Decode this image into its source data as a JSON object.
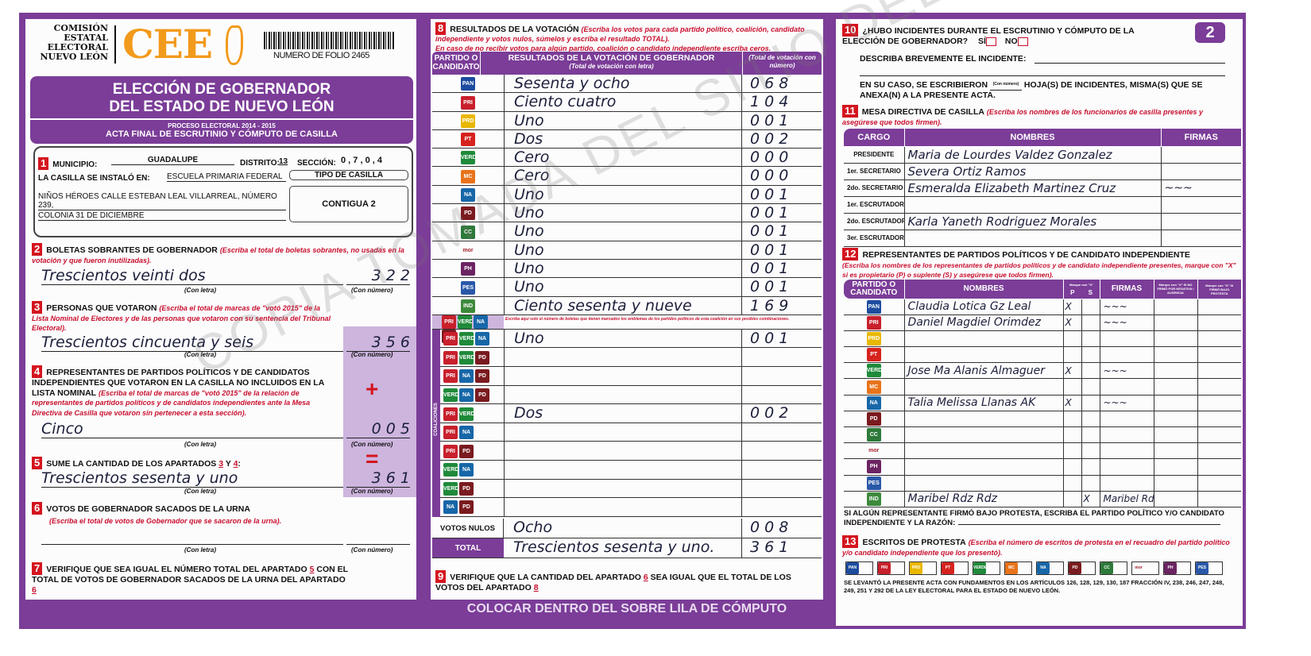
{
  "header": {
    "org_lines": [
      "COMISIÓN",
      "ESTATAL",
      "ELECTORAL",
      "NUEVO LEÓN"
    ],
    "logo_text": "CEE",
    "folio": "NUMERO DE FOLIO 2465",
    "title1": "ELECCIÓN DE GOBERNADOR",
    "title2": "DEL ESTADO DE NUEVO LEÓN",
    "subtitle1": "PROCESO ELECTORAL 2014 - 2015",
    "subtitle2": "ACTA FINAL DE ESCRUTINIO Y CÓMPUTO DE CASILLA",
    "sheet_number": "2"
  },
  "s1": {
    "num": "1",
    "municipio_label": "MUNICIPIO:",
    "municipio": "GUADALUPE",
    "distrito_label": "DISTRITO:",
    "distrito": "13",
    "seccion_label": "SECCIÓN:",
    "seccion": "0 , 7 , 0 , 4",
    "instalo_label": "LA CASILLA SE INSTALÓ EN:",
    "addr1": "ESCUELA PRIMARIA FEDERAL",
    "addr2": "NIÑOS HÉROES CALLE ESTEBAN LEAL VILLARREAL, NÚMERO 239,",
    "addr3": "COLONIA 31 DE DICIEMBRE",
    "tipo_label": "TIPO DE CASILLA",
    "tipo": "CONTIGUA 2"
  },
  "captions": {
    "letra": "(Con letra)",
    "numero": "(Con número)"
  },
  "s2": {
    "num": "2",
    "title": "BOLETAS SOBRANTES DE GOBERNADOR",
    "hint": "(Escriba el total de boletas sobrantes, no usadas en la votación y que fueron inutilizadas).",
    "letra": "Trescientos veinti dos",
    "numero": "3 2 2"
  },
  "s3": {
    "num": "3",
    "title": "PERSONAS QUE VOTARON",
    "hint": "(Escriba el total de marcas de \"votó 2015\" de la Lista Nominal de Electores y de las personas que votaron con su sentencia del Tribunal Electoral).",
    "letra": "Trescientos cincuenta y seis",
    "numero": "3 5 6"
  },
  "s4": {
    "num": "4",
    "title": "REPRESENTANTES DE PARTIDOS POLÍTICOS Y DE CANDIDATOS INDEPENDIENTES QUE VOTARON EN LA CASILLA NO INCLUIDOS EN LA LISTA NOMINAL",
    "hint": "(Escriba el total de marcas de \"votó 2015\" de la relación de representantes de partidos políticos y de candidatos independientes ante la Mesa Directiva de Casilla que votaron sin pertenecer a esta sección).",
    "letra": "Cinco",
    "numero": "0 0 5",
    "plus": "+"
  },
  "s5": {
    "num": "5",
    "title": "SUME LA CANTIDAD DE LOS APARTADOS",
    "a": "3",
    "y": "Y",
    "b": "4",
    "colon": ":",
    "letra": "Trescientos sesenta y uno",
    "numero": "3 6 1",
    "equals": "="
  },
  "s6": {
    "num": "6",
    "title": "VOTOS DE GOBERNADOR SACADOS DE LA URNA",
    "hint": "(Escriba el total de votos de Gobernador que se sacaron de la urna).",
    "letra": "",
    "numero": ""
  },
  "s7": {
    "num": "7",
    "text1": "VERIFIQUE QUE SEA IGUAL EL NÚMERO TOTAL DEL APARTADO",
    "ref1": "5",
    "text2": "CON EL TOTAL DE VOTOS DE GOBERNADOR SACADOS DE LA URNA DEL APARTADO",
    "ref2": "6"
  },
  "s8": {
    "num": "8",
    "title": "RESULTADOS DE LA VOTACIÓN",
    "hint": "(Escriba los votos para cada partido político, coalición, candidato independiente y votos nulos, súmelos y escriba el resultado TOTAL).",
    "hint2": "En caso de no recibir votos para algún partido, coalición o candidato independiente escriba ceros.",
    "col1": "PARTIDO O CANDIDATO",
    "col2": "RESULTADOS DE LA VOTACIÓN DE GOBERNADOR",
    "col2_sub": "(Total de votación con letra)",
    "col3": "(Total de votación con número)",
    "rows": [
      {
        "party": "PAN",
        "letra": "Sesenta y ocho",
        "numero": "0 6 8"
      },
      {
        "party": "PRI",
        "letra": "Ciento cuatro",
        "numero": "1 0 4"
      },
      {
        "party": "PRD",
        "letra": "Uno",
        "numero": "0 0 1"
      },
      {
        "party": "PT",
        "letra": "Dos",
        "numero": "0 0 2"
      },
      {
        "party": "VERDE",
        "letra": "Cero",
        "numero": "0 0 0"
      },
      {
        "party": "MC",
        "letra": "Cero",
        "numero": "0 0 0"
      },
      {
        "party": "NA",
        "letra": "Uno",
        "numero": "0 0 1"
      },
      {
        "party": "PD",
        "letra": "Uno",
        "numero": "0 0 1"
      },
      {
        "party": "CC",
        "letra": "Uno",
        "numero": "0 0 1"
      },
      {
        "party": "morena",
        "letra": "Uno",
        "numero": "0 0 1"
      },
      {
        "party": "PH",
        "letra": "Uno",
        "numero": "0 0 1"
      },
      {
        "party": "PES",
        "letra": "Uno",
        "numero": "0 0 1"
      },
      {
        "party": "IND",
        "letra": "Ciento sesenta y nueve",
        "numero": "1 6 9"
      }
    ],
    "coalition_note": "Escriba aquí solo el número de boletas que tienen marcados los emblemas de los partidos políticos de esta coalición en sus posibles combinaciones.",
    "coalition_label": "COALICIONES",
    "coalition_header": [
      "PRI",
      "VERDE",
      "NA",
      "PD"
    ],
    "coalition_rows": [
      {
        "parties": [
          "PRI",
          "VERDE",
          "NA"
        ],
        "letra": "Uno",
        "numero": "0 0 1"
      },
      {
        "parties": [
          "PRI",
          "VERDE",
          "PD"
        ],
        "letra": "",
        "numero": ""
      },
      {
        "parties": [
          "PRI",
          "NA",
          "PD"
        ],
        "letra": "",
        "numero": ""
      },
      {
        "parties": [
          "VERDE",
          "NA",
          "PD"
        ],
        "letra": "",
        "numero": ""
      },
      {
        "parties": [
          "PRI",
          "VERDE"
        ],
        "letra": "Dos",
        "numero": "0 0 2"
      },
      {
        "parties": [
          "PRI",
          "NA"
        ],
        "letra": "",
        "numero": ""
      },
      {
        "parties": [
          "PRI",
          "PD"
        ],
        "letra": "",
        "numero": ""
      },
      {
        "parties": [
          "VERDE",
          "NA"
        ],
        "letra": "",
        "numero": ""
      },
      {
        "parties": [
          "VERDE",
          "PD"
        ],
        "letra": "",
        "numero": ""
      },
      {
        "parties": [
          "NA",
          "PD"
        ],
        "letra": "",
        "numero": ""
      }
    ],
    "nulos_label": "VOTOS NULOS",
    "nulos_letra": "Ocho",
    "nulos_numero": "0 0 8",
    "total_label": "TOTAL",
    "total_letra": "Trescientos sesenta y uno.",
    "total_numero": "3 6 1"
  },
  "s9": {
    "num": "9",
    "text1": "VERIFIQUE QUE LA CANTIDAD DEL APARTADO",
    "ref1": "6",
    "text2": "SEA IGUAL QUE EL TOTAL DE LOS VOTOS DEL APARTADO",
    "ref2": "8"
  },
  "banner": "COLOCAR DENTRO DEL SOBRE LILA DE CÓMPUTO",
  "s10": {
    "num": "10",
    "q": "¿HUBO INCIDENTES DURANTE EL ESCRUTINIO Y CÓMPUTO DE LA ELECCIÓN DE GOBERNADOR?",
    "si": "SÍ",
    "no": "NO",
    "describe": "DESCRIBA BREVEMENTE EL INCIDENTE:",
    "hojas1": "EN SU CASO, SE ESCRIBIERON",
    "hojas_cap": "(Con número)",
    "hojas2": "HOJA(S) DE INCIDENTES, MISMA(S) QUE SE ANEXA(N) A LA PRESENTE ACTA."
  },
  "s11": {
    "num": "11",
    "title": "MESA DIRECTIVA DE CASILLA",
    "hint": "(Escriba los nombres de los funcionarios de casilla presentes y asegúrese que todos firmen).",
    "col_cargo": "CARGO",
    "col_nombres": "NOMBRES",
    "col_firmas": "FIRMAS",
    "rows": [
      {
        "cargo": "PRESIDENTE",
        "nombre": "Maria de Lourdes Valdez Gonzalez",
        "firma": ""
      },
      {
        "cargo": "1er. SECRETARIO",
        "nombre": "Severa Ortiz Ramos",
        "firma": ""
      },
      {
        "cargo": "2do. SECRETARIO",
        "nombre": "Esmeralda Elizabeth Martinez Cruz",
        "firma": "~signed~"
      },
      {
        "cargo": "1er. ESCRUTADOR",
        "nombre": "",
        "firma": ""
      },
      {
        "cargo": "2do. ESCRUTADOR",
        "nombre": "Karla Yaneth Rodriguez Morales",
        "firma": ""
      },
      {
        "cargo": "3er. ESCRUTADOR",
        "nombre": "",
        "firma": ""
      }
    ]
  },
  "s12": {
    "num": "12",
    "title": "REPRESENTANTES DE PARTIDOS POLÍTICOS Y DE CANDIDATO INDEPENDIENTE",
    "hint": "(Escriba los nombres de los representantes de partidos políticos y de candidato independiente presentes, marque con \"X\" si es propietario (P) o suplente (S) y asegúrese que todos firmen).",
    "col1": "PARTIDO O CANDIDATO",
    "col2": "NOMBRES",
    "mark": "Marque con \"X\"",
    "p": "P",
    "s": "S",
    "col_firmas": "FIRMAS",
    "col_neg": "Marque con \"X\" SI NO FIRMÓ POR NEGATIVA / AUSENCIA",
    "col_prot": "Marque con \"X\" SI FIRMÓ BAJO PROTESTA",
    "rows": [
      {
        "party": "PAN",
        "nombre": "Claudia Lotica Gz Leal",
        "p": "X",
        "s": "",
        "firma": "signed"
      },
      {
        "party": "PRI",
        "nombre": "Daniel Magdiel Orimdez",
        "p": "X",
        "s": "",
        "firma": "signed"
      },
      {
        "party": "PRD",
        "nombre": "",
        "p": "",
        "s": "",
        "firma": ""
      },
      {
        "party": "PT",
        "nombre": "",
        "p": "",
        "s": "",
        "firma": ""
      },
      {
        "party": "VERDE",
        "nombre": "Jose Ma Alanis Almaguer",
        "p": "X",
        "s": "",
        "firma": "signed"
      },
      {
        "party": "MC",
        "nombre": "",
        "p": "",
        "s": "",
        "firma": ""
      },
      {
        "party": "NA",
        "nombre": "Talia Melissa Llanas AK",
        "p": "X",
        "s": "",
        "firma": "signed"
      },
      {
        "party": "PD",
        "nombre": "",
        "p": "",
        "s": "",
        "firma": ""
      },
      {
        "party": "CC",
        "nombre": "",
        "p": "",
        "s": "",
        "firma": ""
      },
      {
        "party": "morena",
        "nombre": "",
        "p": "",
        "s": "",
        "firma": ""
      },
      {
        "party": "PH",
        "nombre": "",
        "p": "",
        "s": "",
        "firma": ""
      },
      {
        "party": "PES",
        "nombre": "",
        "p": "",
        "s": "",
        "firma": ""
      },
      {
        "party": "IND",
        "nombre": "Maribel Rdz Rdz",
        "p": "",
        "s": "X",
        "firma": "Maribel Rdz"
      }
    ],
    "protesta1": "SI ALGÚN REPRESENTANTE FIRMÓ BAJO PROTESTA, ESCRIBA EL PARTIDO POLÍTICO Y/O CANDIDATO",
    "protesta2": "INDEPENDIENTE Y LA RAZÓN:"
  },
  "s13": {
    "num": "13",
    "title": "ESCRITOS DE PROTESTA",
    "hint": "(Escriba el número de escritos de protesta en el recuadro del partido político y/o candidato independiente que los presentó).",
    "parties": [
      "PAN",
      "PRI",
      "PRD",
      "PT",
      "VERDE",
      "MC",
      "NA",
      "PD",
      "CC",
      "morena",
      "PH",
      "PES"
    ],
    "footer": "SE LEVANTÓ LA PRESENTE ACTA CON FUNDAMENTOS EN LOS ARTÍCULOS 126, 128, 129, 130, 187 FRACCIÓN IV, 238, 246, 247, 248, 249, 251 Y 292 DE LA LEY ELECTORAL PARA EL ESTADO DE NUEVO LEÓN."
  },
  "watermark": "COPIA TOMADA DEL SITIO DEL",
  "party_colors": {
    "PAN": "#1d4c9e",
    "PRI": "#c8202c",
    "PRD": "#e9b800",
    "PT": "#d6231e",
    "VERDE": "#1f8a3a",
    "MC": "#e8731a",
    "NA": "#1767a8",
    "PD": "#7a1b1f",
    "CC": "#2d7a3a",
    "morena": "#a3222b",
    "PH": "#6b2462",
    "PES": "#2a58a8",
    "IND": "#3d8a3c"
  }
}
